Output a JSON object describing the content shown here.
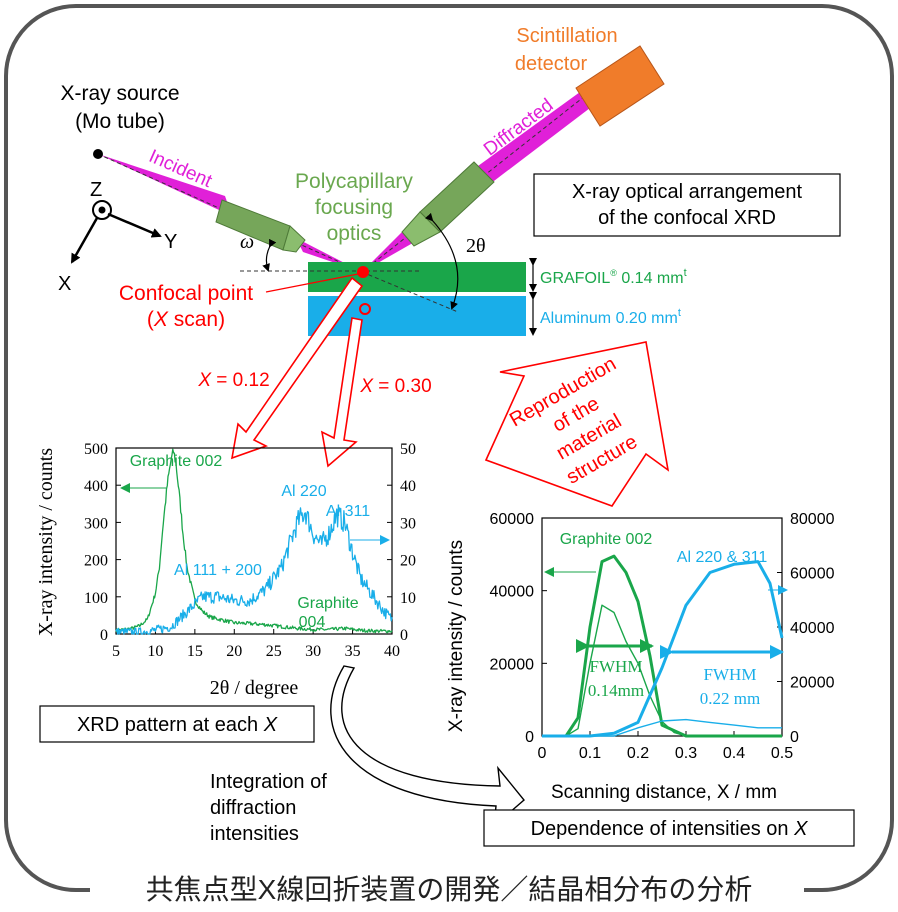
{
  "title_footer": "共焦点型X線回折装置の開発／結晶相分布の分析",
  "colors": {
    "incident": "#e020d8",
    "optics": "#6aa84f",
    "green": "#1aa64a",
    "blue": "#19aee9",
    "red": "#ff0000",
    "detector": "#f07c2a",
    "frame": "#555555"
  },
  "diagram": {
    "source_label_1": "X-ray source",
    "source_label_2": "(Mo tube)",
    "detector_label_1": "Scintillation",
    "detector_label_2": "detector",
    "incident_label": "Incident",
    "diffracted_label": "Diffracted",
    "optics_label_1": "Polycapillary",
    "optics_label_2": "focusing",
    "optics_label_3": "optics",
    "omega_label": "ω",
    "two_theta_label": "2θ",
    "axis_z": "Z",
    "axis_y": "Y",
    "axis_x": "X",
    "confocal_label_1": "Confocal point",
    "confocal_label_2_pre": "(",
    "confocal_label_2_var": "X",
    "confocal_label_2_post": " scan)",
    "arrangement_label_1": "X-ray optical arrangement",
    "arrangement_label_2": "of the confocal XRD",
    "grafoil_label": "GRAFOIL",
    "grafoil_reg": "®",
    "grafoil_dim": " 0.14 mm",
    "grafoil_sup": "t",
    "aluminum_label": "Aluminum 0.20 mm",
    "aluminum_sup": "t",
    "x012_var": "X",
    "x012_val": " = 0.12",
    "x030_var": "X",
    "x030_val": " = 0.30",
    "reproduction_1": "Reproduction",
    "reproduction_2": "of the",
    "reproduction_3": "material",
    "reproduction_4": "structure",
    "xrd_box_pre": "XRD pattern at each ",
    "xrd_box_var": "X",
    "integration_1": "Integration of",
    "integration_2": "diffraction",
    "integration_3": "intensities",
    "dependence_pre": "Dependence of intensities on ",
    "dependence_var": "X"
  },
  "chart_data": [
    {
      "type": "line",
      "xlabel": "2θ / degree",
      "ylabel": "X-ray intensity / counts",
      "xlim": [
        5,
        40
      ],
      "ylim_left": [
        0,
        500
      ],
      "ylim_right": [
        0,
        50
      ],
      "xticks": [
        "5",
        "10",
        "15",
        "20",
        "25",
        "30",
        "35",
        "40"
      ],
      "yticks_left": [
        "0",
        "100",
        "200",
        "300",
        "400",
        "500"
      ],
      "yticks_right": [
        "0",
        "10",
        "20",
        "30",
        "40",
        "50"
      ],
      "annotations": [
        "Graphite 002",
        "Al 111 + 200",
        "Al 220",
        "Al 311",
        "Graphite",
        "004"
      ],
      "series": [
        {
          "name": "Graphite (X = 0.12)",
          "axis": "left",
          "x": [
            5,
            6,
            7,
            8,
            9,
            10,
            10.5,
            11,
            11.5,
            12,
            12.3,
            12.6,
            13,
            13.5,
            14,
            15,
            16,
            17,
            18,
            19,
            20,
            22,
            24,
            26,
            28,
            30,
            32,
            34,
            36,
            38,
            40
          ],
          "y": [
            10,
            12,
            15,
            22,
            40,
            110,
            180,
            300,
            400,
            470,
            490,
            460,
            380,
            270,
            180,
            90,
            60,
            45,
            40,
            35,
            30,
            28,
            25,
            20,
            15,
            12,
            12,
            15,
            10,
            8,
            8
          ]
        },
        {
          "name": "Aluminum (X = 0.30)",
          "axis": "right",
          "x": [
            5,
            8,
            10,
            12,
            14,
            16,
            18,
            20,
            22,
            24,
            26,
            27,
            28,
            29,
            30,
            31,
            32,
            33,
            34,
            35,
            36,
            37,
            38,
            39,
            40
          ],
          "y": [
            0.5,
            0.5,
            1,
            2,
            6,
            10,
            10,
            9,
            9,
            12,
            18,
            24,
            30,
            33,
            27,
            24,
            27,
            32,
            30,
            22,
            15,
            12,
            9,
            6,
            4
          ]
        }
      ]
    },
    {
      "type": "line",
      "xlabel": "Scanning distance, X / mm",
      "ylabel": "X-ray intensity / counts",
      "xlim": [
        0,
        0.5
      ],
      "ylim_left": [
        0,
        60000
      ],
      "ylim_right": [
        0,
        80000
      ],
      "xticks": [
        "0",
        "0.1",
        "0.2",
        "0.3",
        "0.4",
        "0.5"
      ],
      "yticks_left": [
        "0",
        "20000",
        "40000",
        "60000"
      ],
      "yticks_right": [
        "0",
        "20000",
        "40000",
        "60000",
        "80000"
      ],
      "annotations": [
        "Graphite 002",
        "Al 220 & 311",
        "FWHM",
        "0.14mm",
        "FWHM",
        "0.22 mm"
      ],
      "series": [
        {
          "name": "Graphite 002",
          "axis": "left",
          "x": [
            0,
            0.05,
            0.075,
            0.1,
            0.125,
            0.15,
            0.175,
            0.2,
            0.225,
            0.25,
            0.3,
            0.5
          ],
          "y": [
            0,
            0,
            5000,
            30000,
            48000,
            49500,
            45000,
            37000,
            22000,
            3000,
            0,
            0
          ]
        },
        {
          "name": "Graphite 002 (thin)",
          "axis": "left",
          "x": [
            0,
            0.05,
            0.075,
            0.1,
            0.125,
            0.15,
            0.175,
            0.2,
            0.225,
            0.25,
            0.275,
            0.3,
            0.5
          ],
          "y": [
            0,
            0,
            2000,
            20000,
            36000,
            34000,
            26000,
            20000,
            11000,
            4000,
            1000,
            0,
            0
          ]
        },
        {
          "name": "Al 220 & 311",
          "axis": "right",
          "x": [
            0,
            0.1,
            0.15,
            0.2,
            0.25,
            0.3,
            0.35,
            0.4,
            0.45,
            0.475,
            0.5
          ],
          "y": [
            0,
            0,
            1000,
            5000,
            25000,
            48000,
            60000,
            63000,
            64000,
            56000,
            36000
          ]
        },
        {
          "name": "Al 220 & 311 (thin)",
          "axis": "right",
          "x": [
            0,
            0.15,
            0.2,
            0.25,
            0.3,
            0.35,
            0.4,
            0.45,
            0.5
          ],
          "y": [
            0,
            0,
            3000,
            5500,
            6000,
            5000,
            4000,
            3000,
            3000
          ]
        }
      ]
    }
  ]
}
